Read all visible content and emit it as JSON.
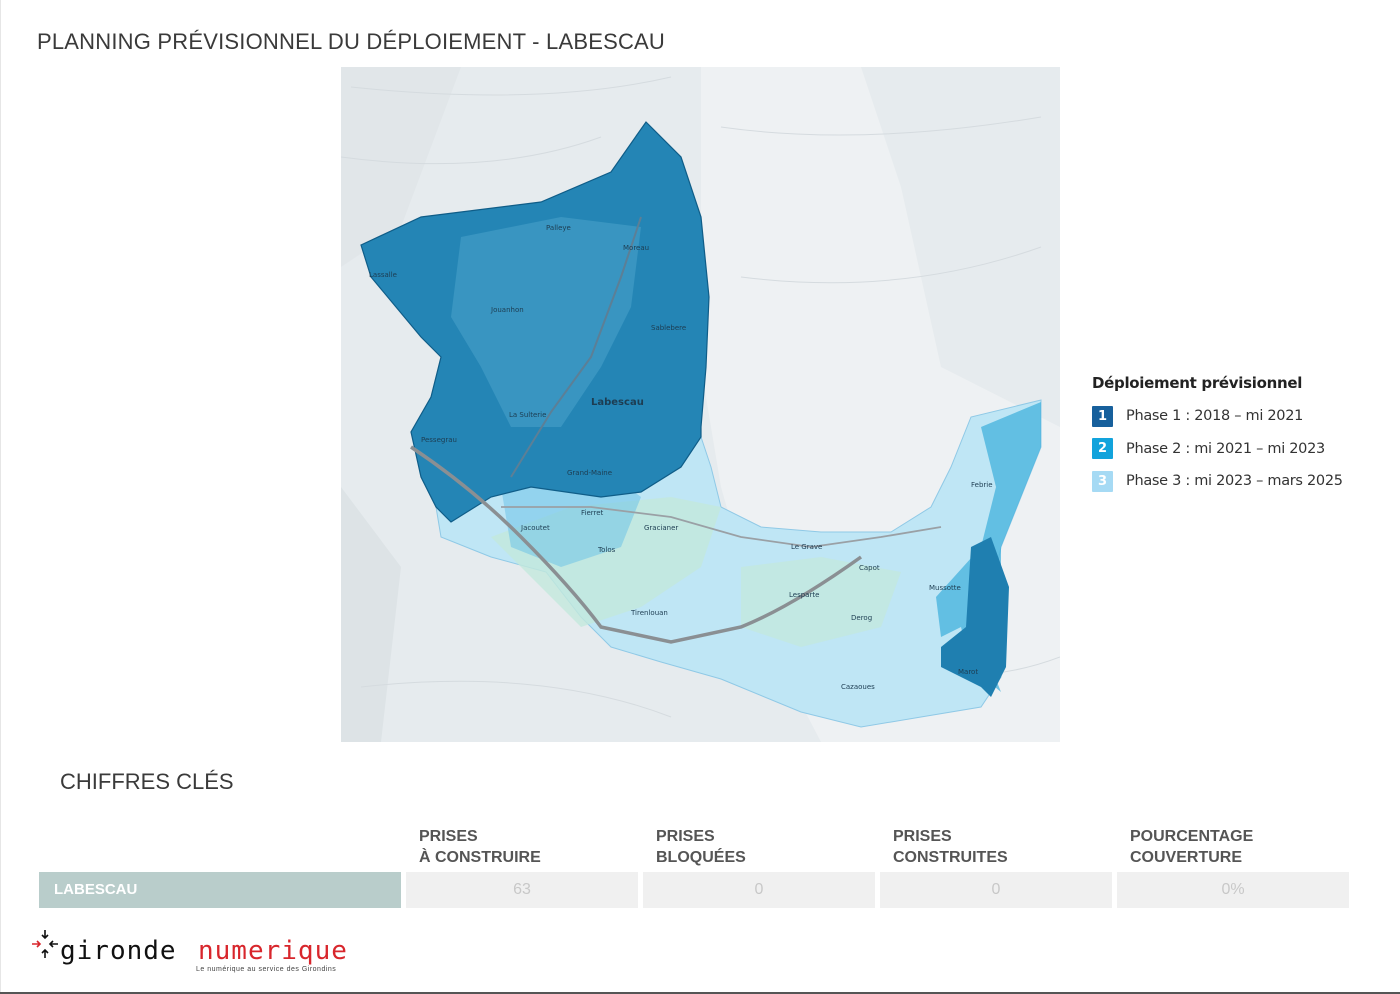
{
  "page_title": "PLANNING PRÉVISIONNEL DU DÉPLOIEMENT - LABESCAU",
  "map": {
    "place_labels": [
      "Palleye",
      "Moreau",
      "Lassalle",
      "Jouanhon",
      "Labescau",
      "Sablebere",
      "La Sulterie",
      "Pessegrau",
      "Grand-Maine",
      "Fierret",
      "Jacoutet",
      "Gracianer",
      "Tolos",
      "Le Grave",
      "Capot",
      "Mussotte",
      "Lesparte",
      "Derog",
      "Tirenlouan",
      "Cazaoues",
      "Febrie",
      "Marot"
    ],
    "colors": {
      "phase1": "#1f7fb0",
      "phase2": "#3ab0de",
      "phase3": "#a9dcf2",
      "background": "#e7ebed"
    }
  },
  "legend": {
    "title": "Déploiement prévisionnel",
    "items": [
      {
        "number": "1",
        "label": "Phase 1 : 2018 – mi 2021",
        "color": "#17609c"
      },
      {
        "number": "2",
        "label": "Phase 2 : mi 2021 – mi 2023",
        "color": "#12a3dc"
      },
      {
        "number": "3",
        "label": "Phase 3 : mi 2023 – mars 2025",
        "color": "#a6daf4"
      }
    ]
  },
  "key_figures": {
    "title": "CHIFFRES CLÉS",
    "columns": [
      "PRISES\nÀ CONSTRUIRE",
      "PRISES\nBLOQUÉES",
      "PRISES\nCONSTRUITES",
      "POURCENTAGE\nCOUVERTURE"
    ],
    "row_label": "LABESCAU",
    "values": [
      "63",
      "0",
      "0",
      "0%"
    ]
  },
  "logo": {
    "word1": "gironde",
    "word2": "numerique",
    "tagline": "Le numérique au service des Girondins"
  }
}
